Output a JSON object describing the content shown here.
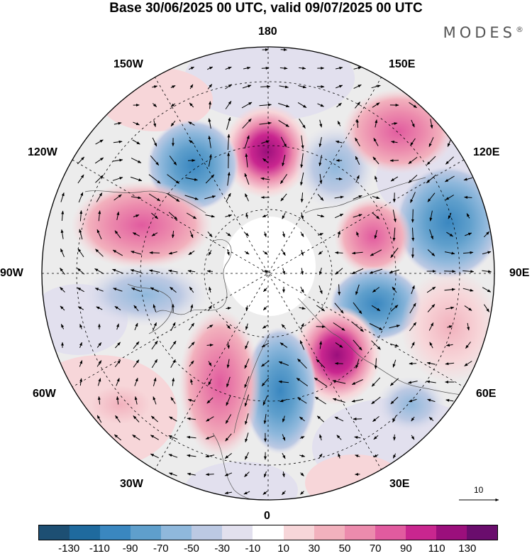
{
  "title": "Base 30/06/2025 00 UTC, valid 09/07/2025 00 UTC",
  "brand": "MODES",
  "brand_mark": "®",
  "longitude_labels": [
    {
      "id": "lon-180",
      "text": "180"
    },
    {
      "id": "lon-150e",
      "text": "150E"
    },
    {
      "id": "lon-120e",
      "text": "120E"
    },
    {
      "id": "lon-90e",
      "text": "90E"
    },
    {
      "id": "lon-60e",
      "text": "60E"
    },
    {
      "id": "lon-30e",
      "text": "30E"
    },
    {
      "id": "lon-0",
      "text": "0"
    },
    {
      "id": "lon-30w",
      "text": "30W"
    },
    {
      "id": "lon-60w",
      "text": "60W"
    },
    {
      "id": "lon-90w",
      "text": "90W"
    },
    {
      "id": "lon-120w",
      "text": "120W"
    },
    {
      "id": "lon-150w",
      "text": "150W"
    }
  ],
  "reference_vector": {
    "label": "10"
  },
  "colorbar": {
    "colors": [
      "#1d4f73",
      "#1f6a9e",
      "#3a87c0",
      "#5f9fcc",
      "#8fb8dc",
      "#bcc9e3",
      "#e2e0ee",
      "#ffffff",
      "#f7d6d9",
      "#f2b1bd",
      "#ec8bad",
      "#e15b9f",
      "#c9268f",
      "#9b0f7c",
      "#6a0d6d"
    ],
    "tick_labels": [
      "-130",
      "-110",
      "-90",
      "-70",
      "-50",
      "-30",
      "-10",
      "10",
      "30",
      "50",
      "70",
      "90",
      "110",
      "130"
    ]
  },
  "anomaly_cells": [
    {
      "name": "positive-cell-180",
      "value": 100
    },
    {
      "name": "negative-cell-160w",
      "value": -90
    },
    {
      "name": "negative-cell-170e",
      "value": -50
    },
    {
      "name": "positive-cell-145e",
      "value": 60
    },
    {
      "name": "negative-cell-110e",
      "value": -60
    },
    {
      "name": "positive-cell-115w",
      "value": 80
    },
    {
      "name": "negative-cell-95w",
      "value": -40
    },
    {
      "name": "positive-cell-100e",
      "value": 70
    },
    {
      "name": "negative-cell-75e",
      "value": -90
    },
    {
      "name": "positive-cell-60e",
      "value": 50
    },
    {
      "name": "positive-cell-40e",
      "value": 110
    },
    {
      "name": "negative-cell-5e",
      "value": -80
    },
    {
      "name": "positive-cell-20w",
      "value": 70
    },
    {
      "name": "positive-cell-50w",
      "value": 20
    },
    {
      "name": "negative-cell-25e-lowlat",
      "value": -30
    }
  ]
}
